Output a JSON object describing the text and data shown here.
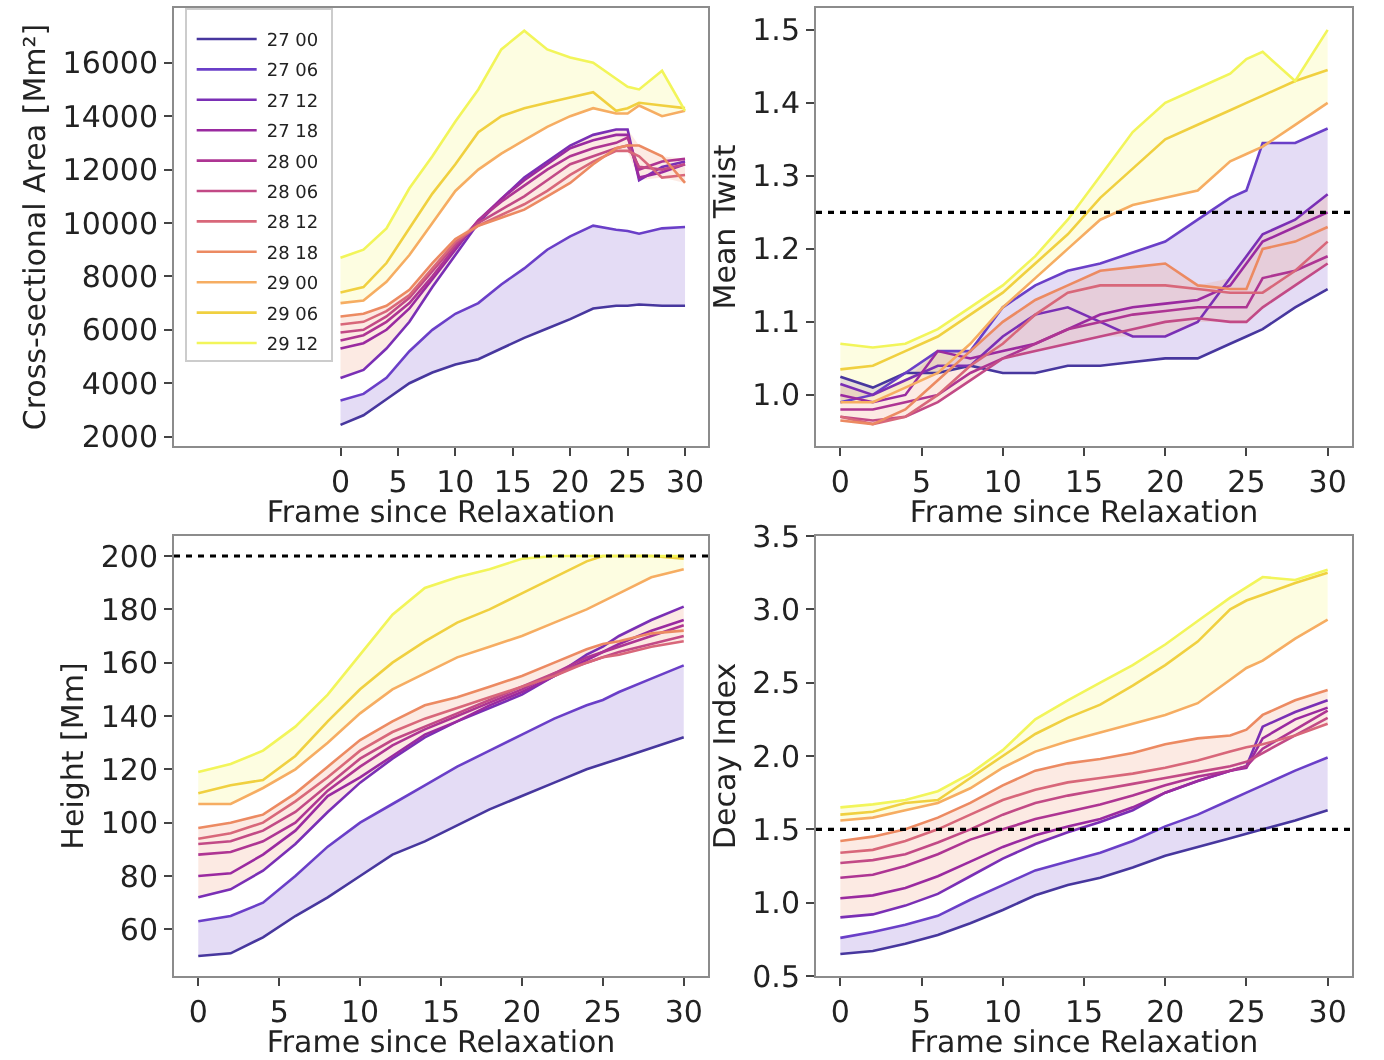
{
  "chart_data": [
    {
      "type": "line",
      "xlabel": "Frame since Relaxation",
      "ylabel": "Cross-sectional Area [Mm²]",
      "legend": "top left",
      "x": [
        0,
        2,
        4,
        6,
        8,
        10,
        12,
        14,
        16,
        18,
        20,
        22,
        24,
        25,
        26,
        28,
        30
      ],
      "xlim": [
        -14.5,
        32
      ],
      "xticks": [
        0,
        5,
        10,
        15,
        20,
        25,
        30
      ],
      "ylim": [
        1650,
        18050
      ],
      "yticks": [
        2000,
        4000,
        6000,
        8000,
        10000,
        12000,
        14000,
        16000
      ],
      "series": [
        {
          "name": "27 00",
          "color": "#47379e",
          "values": [
            2440,
            2800,
            3400,
            4000,
            4400,
            4700,
            4900,
            5300,
            5700,
            6050,
            6400,
            6800,
            6900,
            6900,
            6950,
            6900,
            6900
          ]
        },
        {
          "name": "27 06",
          "color": "#6a3fc8",
          "values": [
            3350,
            3600,
            4200,
            5200,
            6000,
            6600,
            7000,
            7700,
            8300,
            9000,
            9500,
            9900,
            9750,
            9700,
            9600,
            9800,
            9850
          ],
          "lower": [
            2440,
            2800,
            3400,
            4000,
            4400,
            4700,
            4900,
            5300,
            5700,
            6050,
            6400,
            6800,
            6900,
            6900,
            6950,
            6900,
            6900
          ],
          "upper": [
            3350,
            3600,
            4200,
            5200,
            6000,
            6600,
            7000,
            7700,
            8300,
            9000,
            9500,
            9900,
            9750,
            9700,
            9600,
            9800,
            9850
          ]
        },
        {
          "name": "27 12",
          "color": "#7a2fb5",
          "values": [
            4200,
            4500,
            5300,
            6300,
            7600,
            8800,
            10000,
            10900,
            11700,
            12300,
            12900,
            13300,
            13500,
            13500,
            11600,
            12100,
            12300
          ]
        },
        {
          "name": "27 18",
          "color": "#9a2aa0",
          "values": [
            5300,
            5500,
            6000,
            6800,
            7900,
            9000,
            10100,
            10900,
            11600,
            12200,
            12800,
            13100,
            13300,
            13300,
            11700,
            11900,
            12200
          ]
        },
        {
          "name": "28 00",
          "color": "#ae3593",
          "values": [
            5600,
            5800,
            6300,
            7000,
            8000,
            9100,
            10100,
            10800,
            11400,
            12000,
            12500,
            12800,
            13000,
            13200,
            12000,
            12300,
            12400
          ]
        },
        {
          "name": "28 06",
          "color": "#c24a86",
          "values": [
            5900,
            6000,
            6500,
            7200,
            8200,
            9200,
            10000,
            10500,
            11000,
            11600,
            12200,
            12500,
            12800,
            12900,
            12100,
            12000,
            12200
          ]
        },
        {
          "name": "28 12",
          "color": "#d8677a",
          "values": [
            6200,
            6300,
            6700,
            7300,
            8300,
            9300,
            9900,
            10300,
            10700,
            11200,
            11800,
            12300,
            12700,
            12700,
            12500,
            11700,
            11800
          ]
        },
        {
          "name": "28 18",
          "color": "#ec8a62",
          "values": [
            6500,
            6600,
            6900,
            7500,
            8500,
            9400,
            9900,
            10200,
            10500,
            11000,
            11500,
            12200,
            12800,
            12900,
            12900,
            12500,
            11500
          ],
          "lower": [
            4200,
            4500,
            5300,
            6300,
            7600,
            8800,
            9900,
            10200,
            10500,
            11000,
            11500,
            12200,
            12700,
            12700,
            11600,
            11700,
            11500
          ],
          "upper": [
            6500,
            6600,
            6900,
            7500,
            8500,
            9400,
            10100,
            10900,
            11700,
            12300,
            12900,
            13300,
            13500,
            13500,
            12900,
            12500,
            12400
          ]
        },
        {
          "name": "29 00",
          "color": "#f6ad62",
          "values": [
            7000,
            7100,
            7800,
            8800,
            10000,
            11200,
            12000,
            12600,
            13100,
            13600,
            14000,
            14300,
            14100,
            14100,
            14400,
            14000,
            14200
          ]
        },
        {
          "name": "29 06",
          "color": "#f0d040",
          "values": [
            7400,
            7600,
            8500,
            9800,
            11100,
            12200,
            13400,
            14000,
            14300,
            14500,
            14700,
            14900,
            14200,
            14300,
            14500,
            14400,
            14300
          ]
        },
        {
          "name": "29 12",
          "color": "#f2f55a",
          "values": [
            8700,
            9000,
            9800,
            11300,
            12500,
            13800,
            15000,
            16500,
            17200,
            16500,
            16200,
            16000,
            15400,
            15100,
            15000,
            15700,
            14200
          ],
          "lower": [
            7000,
            7100,
            7800,
            8800,
            10000,
            11200,
            12000,
            12600,
            13100,
            13600,
            14000,
            14300,
            14100,
            14100,
            14400,
            14000,
            14200
          ],
          "upper": [
            8700,
            9000,
            9800,
            11300,
            12500,
            13800,
            15000,
            16500,
            17200,
            16500,
            16200,
            16000,
            15400,
            15100,
            15000,
            15700,
            14200
          ]
        }
      ]
    },
    {
      "type": "line",
      "xlabel": "Frame since Relaxation",
      "ylabel": "Mean Twist",
      "x": [
        0,
        2,
        4,
        6,
        8,
        10,
        12,
        14,
        16,
        18,
        20,
        22,
        24,
        25,
        26,
        28,
        30
      ],
      "xlim": [
        -1.5,
        31.5
      ],
      "xticks": [
        0,
        5,
        10,
        15,
        20,
        25,
        30
      ],
      "ylim": [
        0.93,
        1.53
      ],
      "yticks": [
        {
          "value": 1.0,
          "label": "1.0"
        },
        1.1,
        1.2,
        1.3,
        1.4,
        1.5
      ],
      "ref_lines": [
        {
          "axis": "y",
          "value": 1.25,
          "color": "#000000",
          "line_style": "dotted"
        }
      ],
      "series": [
        {
          "color": "#47379e",
          "values": [
            1.025,
            1.01,
            1.03,
            1.03,
            1.04,
            1.03,
            1.03,
            1.04,
            1.04,
            1.045,
            1.05,
            1.05,
            1.07,
            1.08,
            1.09,
            1.12,
            1.145
          ]
        },
        {
          "color": "#6a3fc8",
          "values": [
            0.99,
            1.0,
            1.03,
            1.06,
            1.06,
            1.12,
            1.15,
            1.17,
            1.18,
            1.195,
            1.21,
            1.24,
            1.27,
            1.28,
            1.345,
            1.345,
            1.365
          ],
          "lower": [
            0.99,
            1.0,
            1.03,
            1.03,
            1.04,
            1.03,
            1.03,
            1.04,
            1.04,
            1.045,
            1.05,
            1.05,
            1.07,
            1.08,
            1.09,
            1.12,
            1.145
          ],
          "upper": [
            1.025,
            1.01,
            1.03,
            1.06,
            1.06,
            1.12,
            1.15,
            1.17,
            1.18,
            1.195,
            1.21,
            1.24,
            1.27,
            1.28,
            1.345,
            1.345,
            1.365
          ]
        },
        {
          "color": "#7a2fb5",
          "values": [
            1.015,
            1.0,
            1.02,
            1.04,
            1.04,
            1.08,
            1.11,
            1.12,
            1.1,
            1.08,
            1.08,
            1.1,
            1.16,
            1.19,
            1.22,
            1.24,
            1.275
          ]
        },
        {
          "color": "#9a2aa0",
          "values": [
            1.0,
            0.99,
            1.0,
            1.06,
            1.05,
            1.06,
            1.07,
            1.09,
            1.11,
            1.12,
            1.125,
            1.13,
            1.15,
            1.18,
            1.21,
            1.23,
            1.25
          ]
        },
        {
          "color": "#ae3593",
          "values": [
            0.98,
            0.98,
            0.99,
            1.0,
            1.03,
            1.05,
            1.07,
            1.09,
            1.1,
            1.11,
            1.115,
            1.12,
            1.12,
            1.12,
            1.16,
            1.17,
            1.19
          ]
        },
        {
          "color": "#c24a86",
          "values": [
            0.97,
            0.965,
            0.97,
            0.99,
            1.02,
            1.05,
            1.06,
            1.07,
            1.08,
            1.09,
            1.1,
            1.105,
            1.1,
            1.1,
            1.12,
            1.15,
            1.18
          ]
        },
        {
          "color": "#d8677a",
          "values": [
            0.97,
            0.96,
            0.97,
            1.0,
            1.04,
            1.07,
            1.11,
            1.14,
            1.15,
            1.15,
            1.15,
            1.145,
            1.14,
            1.14,
            1.14,
            1.17,
            1.21
          ]
        },
        {
          "color": "#ec8a62",
          "values": [
            0.965,
            0.96,
            0.98,
            1.02,
            1.06,
            1.1,
            1.13,
            1.15,
            1.17,
            1.175,
            1.18,
            1.15,
            1.145,
            1.145,
            1.2,
            1.21,
            1.23
          ],
          "lower": [
            0.965,
            0.96,
            0.97,
            0.99,
            1.02,
            1.05,
            1.06,
            1.07,
            1.08,
            1.08,
            1.08,
            1.1,
            1.1,
            1.1,
            1.12,
            1.15,
            1.18
          ],
          "upper": [
            1.015,
            1.0,
            1.02,
            1.06,
            1.06,
            1.1,
            1.13,
            1.15,
            1.17,
            1.175,
            1.18,
            1.15,
            1.16,
            1.19,
            1.22,
            1.24,
            1.275
          ]
        },
        {
          "color": "#f6ad62",
          "values": [
            0.99,
            0.99,
            1.01,
            1.03,
            1.07,
            1.12,
            1.16,
            1.2,
            1.24,
            1.26,
            1.27,
            1.28,
            1.32,
            1.33,
            1.34,
            1.37,
            1.4
          ]
        },
        {
          "color": "#f0d040",
          "values": [
            1.035,
            1.04,
            1.06,
            1.08,
            1.11,
            1.14,
            1.18,
            1.22,
            1.27,
            1.31,
            1.35,
            1.37,
            1.39,
            1.4,
            1.41,
            1.43,
            1.445
          ]
        },
        {
          "color": "#f2f55a",
          "values": [
            1.07,
            1.065,
            1.07,
            1.09,
            1.12,
            1.15,
            1.19,
            1.24,
            1.3,
            1.36,
            1.4,
            1.42,
            1.44,
            1.46,
            1.47,
            1.43,
            1.5
          ],
          "lower": [
            0.99,
            0.99,
            1.01,
            1.03,
            1.07,
            1.12,
            1.16,
            1.2,
            1.24,
            1.26,
            1.27,
            1.28,
            1.32,
            1.33,
            1.34,
            1.37,
            1.4
          ],
          "upper": [
            1.07,
            1.065,
            1.07,
            1.09,
            1.12,
            1.15,
            1.19,
            1.24,
            1.3,
            1.36,
            1.4,
            1.42,
            1.44,
            1.46,
            1.47,
            1.43,
            1.5
          ]
        }
      ]
    },
    {
      "type": "line",
      "xlabel": "Frame since Relaxation",
      "ylabel": "Height [Mm]",
      "x": [
        0,
        2,
        4,
        6,
        8,
        10,
        12,
        14,
        16,
        18,
        20,
        22,
        24,
        25,
        26,
        28,
        30
      ],
      "xlim": [
        -1.5,
        31.5
      ],
      "xticks": [
        0,
        5,
        10,
        15,
        20,
        25,
        30
      ],
      "ylim": [
        42.5,
        207.5
      ],
      "yticks": [
        60,
        80,
        100,
        120,
        140,
        160,
        180,
        200
      ],
      "ref_lines": [
        {
          "axis": "y",
          "value": 200,
          "color": "#000000",
          "line_style": "dotted"
        }
      ],
      "series": [
        {
          "color": "#47379e",
          "values": [
            50,
            51,
            57,
            65,
            72,
            80,
            88,
            93,
            99,
            105,
            110,
            115,
            120,
            122,
            124,
            128,
            132
          ]
        },
        {
          "color": "#6a3fc8",
          "values": [
            63,
            65,
            70,
            80,
            91,
            100,
            107,
            114,
            121,
            127,
            133,
            139,
            144,
            146,
            149,
            154,
            159
          ],
          "lower": [
            50,
            51,
            57,
            65,
            72,
            80,
            88,
            93,
            99,
            105,
            110,
            115,
            120,
            122,
            124,
            128,
            132
          ],
          "upper": [
            63,
            65,
            70,
            80,
            91,
            100,
            107,
            114,
            121,
            127,
            133,
            139,
            144,
            146,
            149,
            154,
            159
          ]
        },
        {
          "color": "#7a2fb5",
          "values": [
            72,
            75,
            82,
            92,
            104,
            115,
            124,
            132,
            138,
            143,
            148,
            155,
            163,
            166,
            170,
            176,
            181
          ]
        },
        {
          "color": "#9a2aa0",
          "values": [
            80,
            81,
            88,
            97,
            110,
            117,
            125,
            133,
            138,
            144,
            149,
            155,
            161,
            164,
            167,
            172,
            176
          ]
        },
        {
          "color": "#ae3593",
          "values": [
            88,
            89,
            93,
            100,
            112,
            121,
            129,
            135,
            140,
            145,
            150,
            156,
            162,
            164,
            166,
            170,
            174
          ]
        },
        {
          "color": "#c24a86",
          "values": [
            92,
            93,
            97,
            104,
            114,
            124,
            131,
            136,
            141,
            146,
            151,
            156,
            160,
            162,
            164,
            167,
            170
          ]
        },
        {
          "color": "#d8677a",
          "values": [
            94,
            96,
            100,
            108,
            117,
            127,
            134,
            139,
            143,
            147,
            151,
            155,
            160,
            162,
            163,
            166,
            168
          ]
        },
        {
          "color": "#ec8a62",
          "values": [
            98,
            100,
            103,
            111,
            121,
            131,
            138,
            144,
            147,
            151,
            155,
            160,
            165,
            167,
            168,
            171,
            172
          ],
          "lower": [
            72,
            75,
            82,
            92,
            104,
            115,
            124,
            132,
            138,
            143,
            148,
            155,
            160,
            162,
            163,
            166,
            168
          ],
          "upper": [
            98,
            100,
            103,
            111,
            121,
            131,
            138,
            144,
            147,
            151,
            155,
            160,
            165,
            167,
            170,
            176,
            181
          ]
        },
        {
          "color": "#f6ad62",
          "values": [
            107,
            107,
            113,
            120,
            130,
            141,
            150,
            156,
            162,
            166,
            170,
            175,
            180,
            183,
            186,
            192,
            195
          ]
        },
        {
          "color": "#f0d040",
          "values": [
            111,
            114,
            116,
            125,
            138,
            150,
            160,
            168,
            175,
            180,
            186,
            192,
            198,
            200,
            200,
            200,
            199
          ]
        },
        {
          "color": "#f2f55a",
          "values": [
            119,
            122,
            127,
            136,
            148,
            163,
            178,
            188,
            192,
            195,
            199,
            200,
            200,
            200,
            200,
            200,
            200
          ],
          "lower": [
            107,
            107,
            113,
            120,
            130,
            141,
            150,
            156,
            162,
            166,
            170,
            175,
            180,
            183,
            186,
            192,
            195
          ],
          "upper": [
            119,
            122,
            127,
            136,
            148,
            163,
            178,
            188,
            192,
            195,
            199,
            200,
            200,
            200,
            200,
            200,
            200
          ]
        }
      ]
    },
    {
      "type": "line",
      "xlabel": "Frame since Relaxation",
      "ylabel": "Decay Index",
      "x": [
        0,
        2,
        4,
        6,
        8,
        10,
        12,
        14,
        16,
        18,
        20,
        22,
        24,
        25,
        26,
        28,
        30
      ],
      "xlim": [
        -1.5,
        31.5
      ],
      "xticks": [
        0,
        5,
        10,
        15,
        20,
        25,
        30
      ],
      "ylim": [
        0.5,
        3.5
      ],
      "yticks": [
        0.5,
        {
          "value": 1.0,
          "label": "1.0"
        },
        1.5,
        {
          "value": 2.0,
          "label": "2.0"
        },
        2.5,
        {
          "value": 3.0,
          "label": "3.0"
        },
        3.5
      ],
      "ref_lines": [
        {
          "axis": "y",
          "value": 1.5,
          "color": "#000000",
          "line_style": "dotted"
        }
      ],
      "series": [
        {
          "color": "#47379e",
          "values": [
            0.65,
            0.67,
            0.72,
            0.78,
            0.86,
            0.95,
            1.05,
            1.12,
            1.17,
            1.24,
            1.32,
            1.38,
            1.44,
            1.47,
            1.5,
            1.56,
            1.63
          ]
        },
        {
          "color": "#6a3fc8",
          "values": [
            0.76,
            0.8,
            0.85,
            0.91,
            1.02,
            1.12,
            1.22,
            1.28,
            1.34,
            1.42,
            1.52,
            1.6,
            1.7,
            1.75,
            1.8,
            1.9,
            1.99
          ],
          "lower": [
            0.65,
            0.67,
            0.72,
            0.78,
            0.86,
            0.95,
            1.05,
            1.12,
            1.17,
            1.24,
            1.32,
            1.38,
            1.44,
            1.47,
            1.5,
            1.56,
            1.63
          ],
          "upper": [
            0.76,
            0.8,
            0.85,
            0.91,
            1.02,
            1.12,
            1.22,
            1.28,
            1.34,
            1.42,
            1.52,
            1.6,
            1.7,
            1.75,
            1.8,
            1.9,
            1.99
          ]
        },
        {
          "color": "#7a2fb5",
          "values": [
            0.9,
            0.92,
            0.98,
            1.06,
            1.18,
            1.3,
            1.4,
            1.48,
            1.55,
            1.63,
            1.75,
            1.83,
            1.9,
            1.93,
            2.2,
            2.3,
            2.38
          ]
        },
        {
          "color": "#9a2aa0",
          "values": [
            1.03,
            1.05,
            1.1,
            1.18,
            1.28,
            1.38,
            1.46,
            1.52,
            1.57,
            1.65,
            1.75,
            1.83,
            1.9,
            1.92,
            2.12,
            2.25,
            2.33
          ]
        },
        {
          "color": "#ae3593",
          "values": [
            1.17,
            1.19,
            1.25,
            1.33,
            1.43,
            1.5,
            1.57,
            1.62,
            1.67,
            1.73,
            1.8,
            1.86,
            1.9,
            1.93,
            2.05,
            2.18,
            2.31
          ]
        },
        {
          "color": "#c24a86",
          "values": [
            1.27,
            1.29,
            1.33,
            1.41,
            1.5,
            1.6,
            1.68,
            1.73,
            1.77,
            1.81,
            1.85,
            1.89,
            1.93,
            1.96,
            2.02,
            2.14,
            2.26
          ]
        },
        {
          "color": "#d8677a",
          "values": [
            1.34,
            1.36,
            1.42,
            1.5,
            1.6,
            1.7,
            1.77,
            1.82,
            1.85,
            1.88,
            1.92,
            1.97,
            2.03,
            2.06,
            2.08,
            2.14,
            2.22
          ]
        },
        {
          "color": "#ec8a62",
          "values": [
            1.42,
            1.45,
            1.5,
            1.58,
            1.68,
            1.8,
            1.9,
            1.95,
            1.98,
            2.02,
            2.08,
            2.12,
            2.14,
            2.18,
            2.28,
            2.38,
            2.45
          ],
          "lower": [
            0.9,
            0.92,
            0.98,
            1.06,
            1.18,
            1.3,
            1.4,
            1.48,
            1.55,
            1.63,
            1.75,
            1.83,
            1.9,
            1.92,
            2.02,
            2.14,
            2.22
          ],
          "upper": [
            1.42,
            1.45,
            1.5,
            1.58,
            1.68,
            1.8,
            1.9,
            1.95,
            1.98,
            2.02,
            2.08,
            2.12,
            2.14,
            2.18,
            2.28,
            2.38,
            2.45
          ]
        },
        {
          "color": "#f6ad62",
          "values": [
            1.56,
            1.58,
            1.63,
            1.68,
            1.78,
            1.92,
            2.03,
            2.1,
            2.16,
            2.22,
            2.28,
            2.36,
            2.52,
            2.6,
            2.65,
            2.8,
            2.93
          ]
        },
        {
          "color": "#f0d040",
          "values": [
            1.6,
            1.62,
            1.68,
            1.7,
            1.85,
            2.0,
            2.15,
            2.26,
            2.35,
            2.48,
            2.62,
            2.78,
            3.0,
            3.06,
            3.1,
            3.18,
            3.25
          ]
        },
        {
          "color": "#f2f55a",
          "values": [
            1.65,
            1.67,
            1.7,
            1.76,
            1.88,
            2.04,
            2.25,
            2.38,
            2.5,
            2.62,
            2.76,
            2.92,
            3.08,
            3.15,
            3.22,
            3.2,
            3.27
          ],
          "lower": [
            1.56,
            1.58,
            1.63,
            1.68,
            1.78,
            1.92,
            2.03,
            2.1,
            2.16,
            2.22,
            2.28,
            2.36,
            2.52,
            2.6,
            2.65,
            2.8,
            2.93
          ],
          "upper": [
            1.65,
            1.67,
            1.7,
            1.76,
            1.88,
            2.04,
            2.25,
            2.38,
            2.5,
            2.62,
            2.76,
            2.92,
            3.08,
            3.15,
            3.22,
            3.2,
            3.27
          ]
        }
      ]
    }
  ]
}
